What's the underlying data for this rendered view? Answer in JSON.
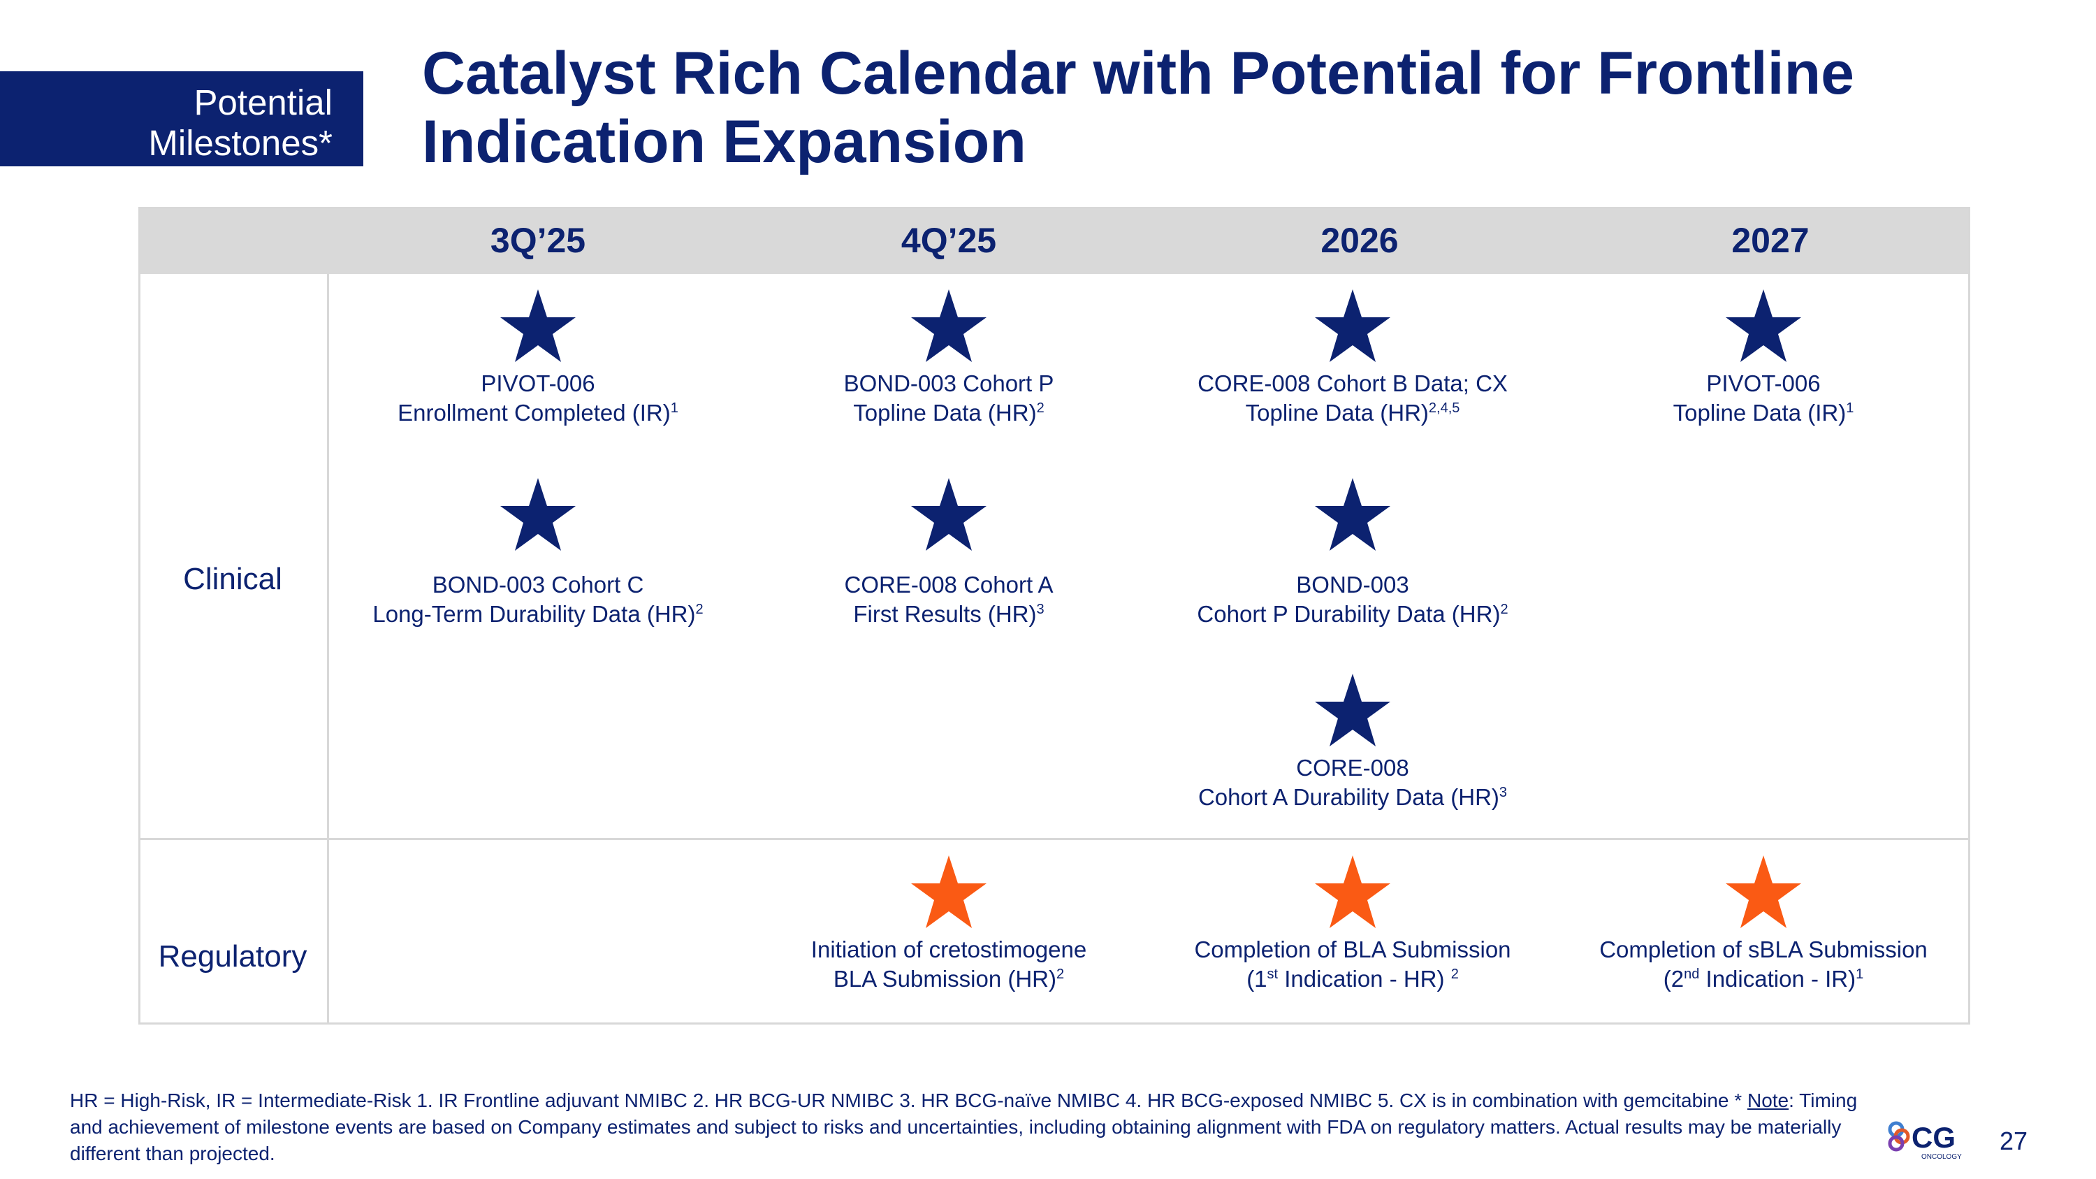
{
  "tag": {
    "line1": "Potential",
    "line2": "Milestones*"
  },
  "title": {
    "line1": "Catalyst Rich Calendar with Potential for Frontline",
    "line2": "Indication Expansion"
  },
  "columns": [
    "3Q’25",
    "4Q’25",
    "2026",
    "2027"
  ],
  "rows": {
    "clinical": "Clinical",
    "regulatory": "Regulatory"
  },
  "milestones": {
    "c_3q25_1": {
      "l1": "PIVOT-006",
      "l2": "Enrollment Completed (IR)",
      "sup": "1"
    },
    "c_3q25_2": {
      "l1": "BOND-003 Cohort C",
      "l2": "Long-Term Durability Data (HR)",
      "sup": "2"
    },
    "c_4q25_1": {
      "l1": "BOND-003 Cohort P",
      "l2": "Topline Data (HR)",
      "sup": "2"
    },
    "c_4q25_2": {
      "l1": "CORE-008 Cohort A",
      "l2": "First Results (HR)",
      "sup": "3"
    },
    "c_2026_1": {
      "l1": "CORE-008 Cohort B Data; CX",
      "l2": "Topline Data (HR)",
      "sup": "2,4,5"
    },
    "c_2026_2": {
      "l1": "BOND-003",
      "l2": "Cohort P Durability Data (HR)",
      "sup": "2"
    },
    "c_2026_3": {
      "l1": "CORE-008",
      "l2": "Cohort A Durability Data (HR)",
      "sup": "3"
    },
    "c_2027_1": {
      "l1": "PIVOT-006",
      "l2": "Topline Data (IR)",
      "sup": "1"
    },
    "r_4q25": {
      "l1": "Initiation of cretostimogene",
      "l2": "BLA Submission (HR)",
      "sup": "2"
    },
    "r_2026": {
      "l1": "Completion of BLA Submission",
      "l2a": "(1",
      "sup_a": "st",
      "l2b": " Indication - HR) ",
      "sup": "2"
    },
    "r_2027": {
      "l1": "Completion of sBLA Submission",
      "l2a": "(2",
      "sup_a": "nd",
      "l2b": " Indication - IR)",
      "sup": "1"
    }
  },
  "footnote": {
    "part1": "HR = High-Risk, IR = Intermediate-Risk 1. IR Frontline adjuvant NMIBC  2. HR BCG-UR NMIBC  3. HR BCG-naïve NMIBC   4. HR BCG-exposed NMIBC  5. CX is in combination with gemcitabine   * ",
    "note_label": "Note",
    "part2": ": Timing and achievement of milestone events are based on Company estimates and subject to risks and uncertainties, including obtaining alignment with FDA on regulatory matters. Actual results may be materially different than projected."
  },
  "logo": {
    "mark": "CG",
    "sub": "ONCOLOGY"
  },
  "page_number": "27",
  "colors": {
    "navy": "#0c2270",
    "orange": "#fa5a14",
    "header_gray": "#d9d9d9"
  }
}
